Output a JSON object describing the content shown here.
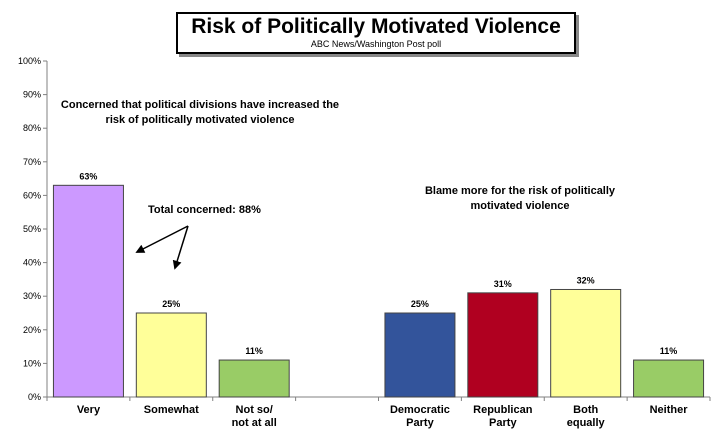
{
  "title": "Risk of Politically Motivated Violence",
  "subtitle": "ABC News/Washington Post poll",
  "annotations": {
    "left_group": "Concerned that political divisions have increased the risk of politically motivated violence",
    "total": "Total concerned: 88%",
    "right_group": "Blame more for the risk of politically motivated violence"
  },
  "colors": {
    "very": "#cc99ff",
    "somewhat": "#ffff99",
    "not_at_all": "#99cc66",
    "democratic": "#33549b",
    "republican": "#b00020",
    "both": "#ffff99",
    "neither": "#99cc66"
  },
  "chart_data": {
    "type": "bar",
    "title": "Risk of Politically Motivated Violence",
    "subtitle": "ABC News/Washington Post poll",
    "ylim": [
      0,
      100
    ],
    "y_ticks": [
      "0%",
      "10%",
      "20%",
      "30%",
      "40%",
      "50%",
      "60%",
      "70%",
      "80%",
      "90%",
      "100%"
    ],
    "grid": false,
    "categories": [
      "Very",
      "Somewhat",
      "Not so/ not at all",
      "Democratic Party",
      "Republican Party",
      "Both equally",
      "Neither"
    ],
    "category_lines": [
      [
        "Very"
      ],
      [
        "Somewhat"
      ],
      [
        "Not so/",
        "not at all"
      ],
      [
        "Democratic",
        "Party"
      ],
      [
        "Republican",
        "Party"
      ],
      [
        "Both",
        "equally"
      ],
      [
        "Neither"
      ]
    ],
    "values": [
      63,
      25,
      11,
      25,
      31,
      32,
      11
    ],
    "value_labels": [
      "63%",
      "25%",
      "11%",
      "25%",
      "31%",
      "32%",
      "11%"
    ],
    "bar_colors": [
      "#cc99ff",
      "#ffff99",
      "#99cc66",
      "#33549b",
      "#b00020",
      "#ffff99",
      "#99cc66"
    ]
  }
}
